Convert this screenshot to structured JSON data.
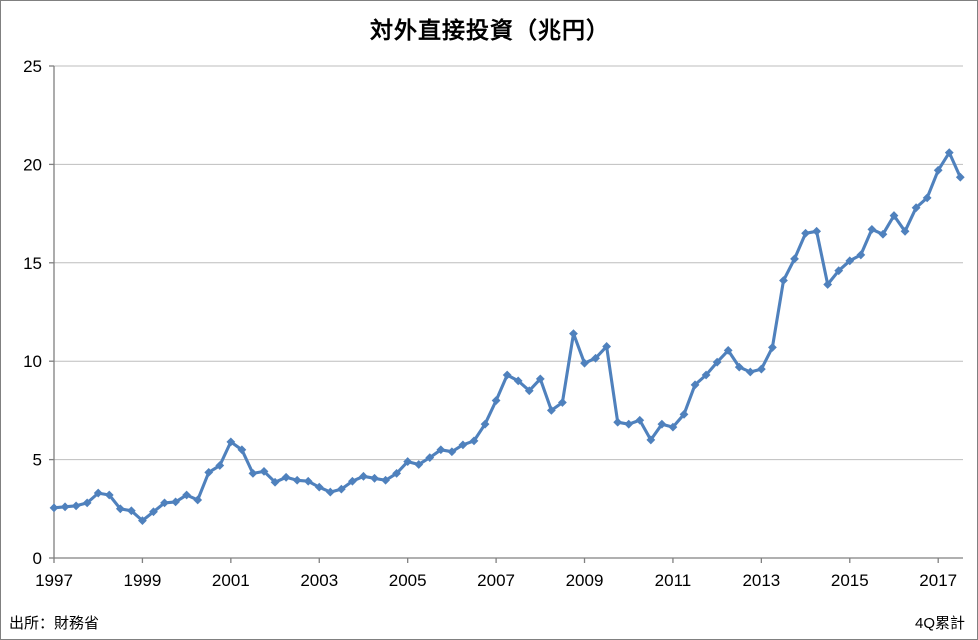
{
  "title": "対外直接投資（兆円）",
  "source_note": "出所：財務省",
  "footer_note": "4Q累計",
  "chart_data": {
    "type": "line",
    "series_name": "対外直接投資",
    "x": [
      "1997Q1",
      "1997Q2",
      "1997Q3",
      "1997Q4",
      "1998Q1",
      "1998Q2",
      "1998Q3",
      "1998Q4",
      "1999Q1",
      "1999Q2",
      "1999Q3",
      "1999Q4",
      "2000Q1",
      "2000Q2",
      "2000Q3",
      "2000Q4",
      "2001Q1",
      "2001Q2",
      "2001Q3",
      "2001Q4",
      "2002Q1",
      "2002Q2",
      "2002Q3",
      "2002Q4",
      "2003Q1",
      "2003Q2",
      "2003Q3",
      "2003Q4",
      "2004Q1",
      "2004Q2",
      "2004Q3",
      "2004Q4",
      "2005Q1",
      "2005Q2",
      "2005Q3",
      "2005Q4",
      "2006Q1",
      "2006Q2",
      "2006Q3",
      "2006Q4",
      "2007Q1",
      "2007Q2",
      "2007Q3",
      "2007Q4",
      "2008Q1",
      "2008Q2",
      "2008Q3",
      "2008Q4",
      "2009Q1",
      "2009Q2",
      "2009Q3",
      "2009Q4",
      "2010Q1",
      "2010Q2",
      "2010Q3",
      "2010Q4",
      "2011Q1",
      "2011Q2",
      "2011Q3",
      "2011Q4",
      "2012Q1",
      "2012Q2",
      "2012Q3",
      "2012Q4",
      "2013Q1",
      "2013Q2",
      "2013Q3",
      "2013Q4",
      "2014Q1",
      "2014Q2",
      "2014Q3",
      "2014Q4",
      "2015Q1",
      "2015Q2",
      "2015Q3",
      "2015Q4",
      "2016Q1",
      "2016Q2",
      "2016Q3",
      "2016Q4",
      "2017Q1",
      "2017Q2",
      "2017Q3"
    ],
    "values": [
      2.55,
      2.6,
      2.65,
      2.8,
      3.3,
      3.2,
      2.5,
      2.4,
      1.9,
      2.35,
      2.8,
      2.85,
      3.2,
      2.95,
      4.35,
      4.7,
      5.9,
      5.5,
      4.3,
      4.4,
      3.85,
      4.1,
      3.95,
      3.9,
      3.6,
      3.35,
      3.5,
      3.9,
      4.15,
      4.05,
      3.95,
      4.3,
      4.9,
      4.75,
      5.1,
      5.5,
      5.4,
      5.75,
      5.95,
      6.8,
      8.0,
      9.3,
      9.0,
      8.5,
      9.1,
      7.5,
      7.9,
      11.4,
      9.9,
      10.15,
      10.75,
      6.9,
      6.8,
      7.0,
      6.0,
      6.8,
      6.65,
      7.3,
      8.8,
      9.3,
      9.95,
      10.55,
      9.7,
      9.45,
      9.6,
      10.7,
      14.1,
      15.2,
      16.5,
      16.6,
      13.9,
      14.6,
      15.1,
      15.4,
      16.7,
      16.45,
      17.4,
      16.6,
      17.8,
      18.3,
      19.7,
      20.6,
      19.35
    ],
    "x_tick_labels": [
      "1997",
      "1999",
      "2001",
      "2003",
      "2005",
      "2007",
      "2009",
      "2011",
      "2013",
      "2015",
      "2017"
    ],
    "x_tick_indices": [
      0,
      8,
      16,
      24,
      32,
      40,
      48,
      56,
      64,
      72,
      80
    ],
    "y_ticks": [
      0,
      5,
      10,
      15,
      20,
      25
    ],
    "ylim": [
      0,
      25
    ],
    "grid": "horizontal",
    "legend": "none",
    "marker": "diamond",
    "line_color": "#4F81BD",
    "gridline_color": "#BEBEBE",
    "axis_color": "#808080",
    "text_color": "#000000"
  }
}
